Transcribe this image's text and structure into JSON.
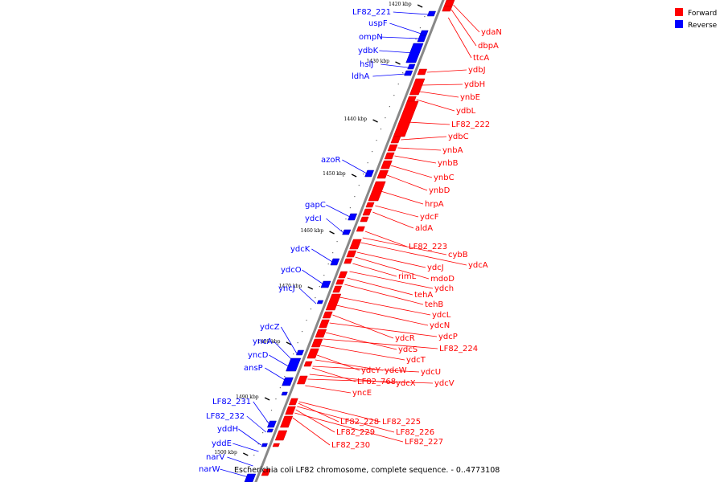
{
  "colors": {
    "forward": "#ff0000",
    "reverse": "#0000ff",
    "backbone": "#888888",
    "forward_dark": "#cc0000",
    "reverse_dark": "#0000aa"
  },
  "legend": [
    {
      "label": "Forward",
      "color": "#ff0000"
    },
    {
      "label": "Reverse",
      "color": "#0000ff"
    }
  ],
  "caption": "Escherichia coli LF82 chromosome, complete sequence. - 0..4773108",
  "ticks": [
    "1420 kbp",
    "1430 kbp",
    "1440 kbp",
    "1450 kbp",
    "1460 kbp",
    "1470 kbp",
    "1480 kbp",
    "1490 kbp",
    "1500 kbp"
  ],
  "reverse_labels": [
    "LF82_221",
    "uspF",
    "ompN",
    "ydbK",
    "hslJ",
    "ldhA",
    "azoR",
    "gapC",
    "ydcI",
    "ydcK",
    "ydcO",
    "yncJ",
    "ydcZ",
    "yncA",
    "yncD",
    "ansP",
    "LF82_231",
    "LF82_232",
    "yddH",
    "yddE",
    "narV",
    "narW"
  ],
  "forward_labels": [
    "ydaN",
    "dbpA",
    "ttcA",
    "ydbJ",
    "ydbH",
    "ynbE",
    "ydbL",
    "LF82_222",
    "ydbC",
    "ynbA",
    "ynbB",
    "ynbC",
    "ynbD",
    "hrpA",
    "ydcF",
    "aldA",
    "LF82_223",
    "cybB",
    "ydcA",
    "ydcJ",
    "mdoD",
    "rimL",
    "ydch",
    "tehA",
    "tehB",
    "ydcL",
    "ydcN",
    "ydcR",
    "ydcP",
    "ydcS",
    "LF82_224",
    "ydcT",
    "ydcY",
    "ydcW",
    "ydcU",
    "LF82_768",
    "ydcX",
    "ydcV",
    "yncE",
    "LF82_228",
    "LF82_225",
    "LF82_229",
    "LF82_226",
    "LF82_230",
    "LF82_227"
  ]
}
